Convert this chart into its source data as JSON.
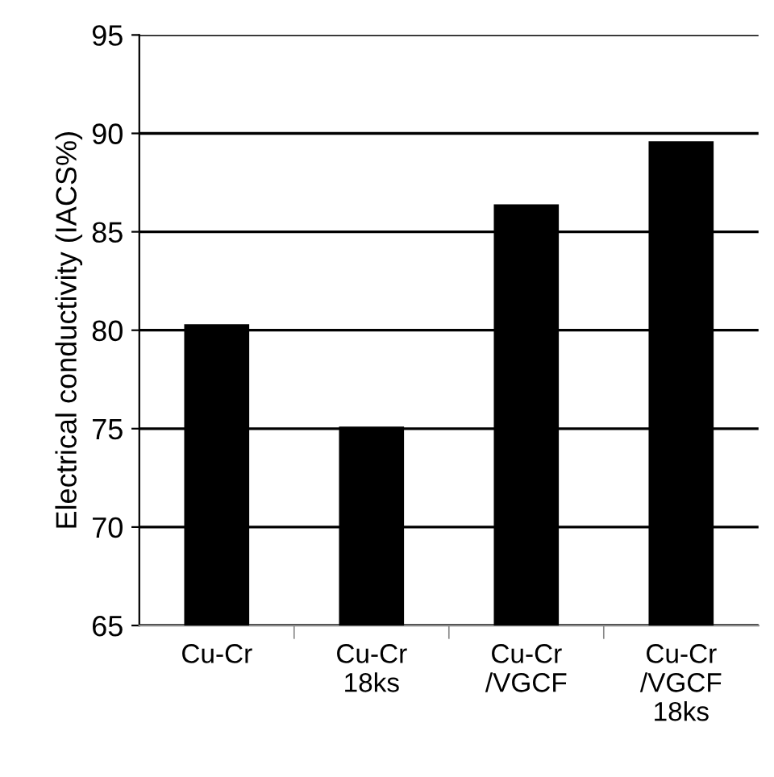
{
  "chart_data": {
    "type": "bar",
    "ylabel": "Electrical conductivity (IACS%)",
    "categories": [
      "Cu-Cr",
      "Cu-Cr\n18ks",
      "Cu-Cr\n/VGCF",
      "Cu-Cr\n/VGCF\n18ks"
    ],
    "values": [
      80.3,
      75.1,
      86.4,
      89.6
    ],
    "color": "#000000",
    "ylim": [
      65,
      95
    ],
    "yticks": [
      65,
      70,
      75,
      80,
      85,
      90,
      95
    ],
    "grid": "y"
  }
}
